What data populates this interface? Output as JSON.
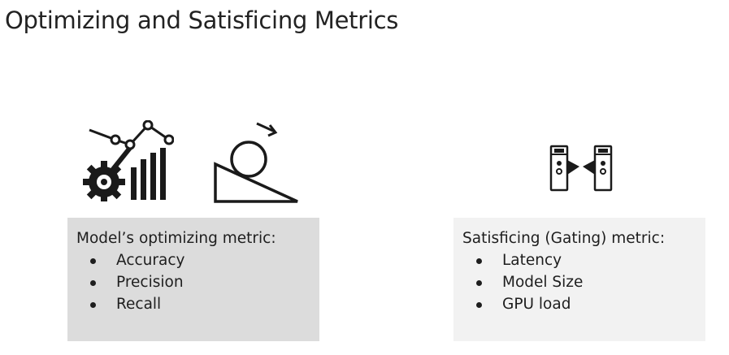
{
  "slide": {
    "title": "Optimizing and Satisficing Metrics"
  },
  "icons": {
    "left_first": "gear-chart-icon",
    "left_second": "ball-ramp-icon",
    "right": "gate-icon"
  },
  "optimizing": {
    "heading": "Model’s optimizing metric:",
    "items": [
      "Accuracy",
      "Precision",
      "Recall"
    ],
    "background": "#dcdcdc"
  },
  "satisficing": {
    "heading": "Satisficing (Gating) metric:",
    "items": [
      "Latency",
      "Model Size",
      "GPU load"
    ],
    "background": "#f2f2f2"
  }
}
